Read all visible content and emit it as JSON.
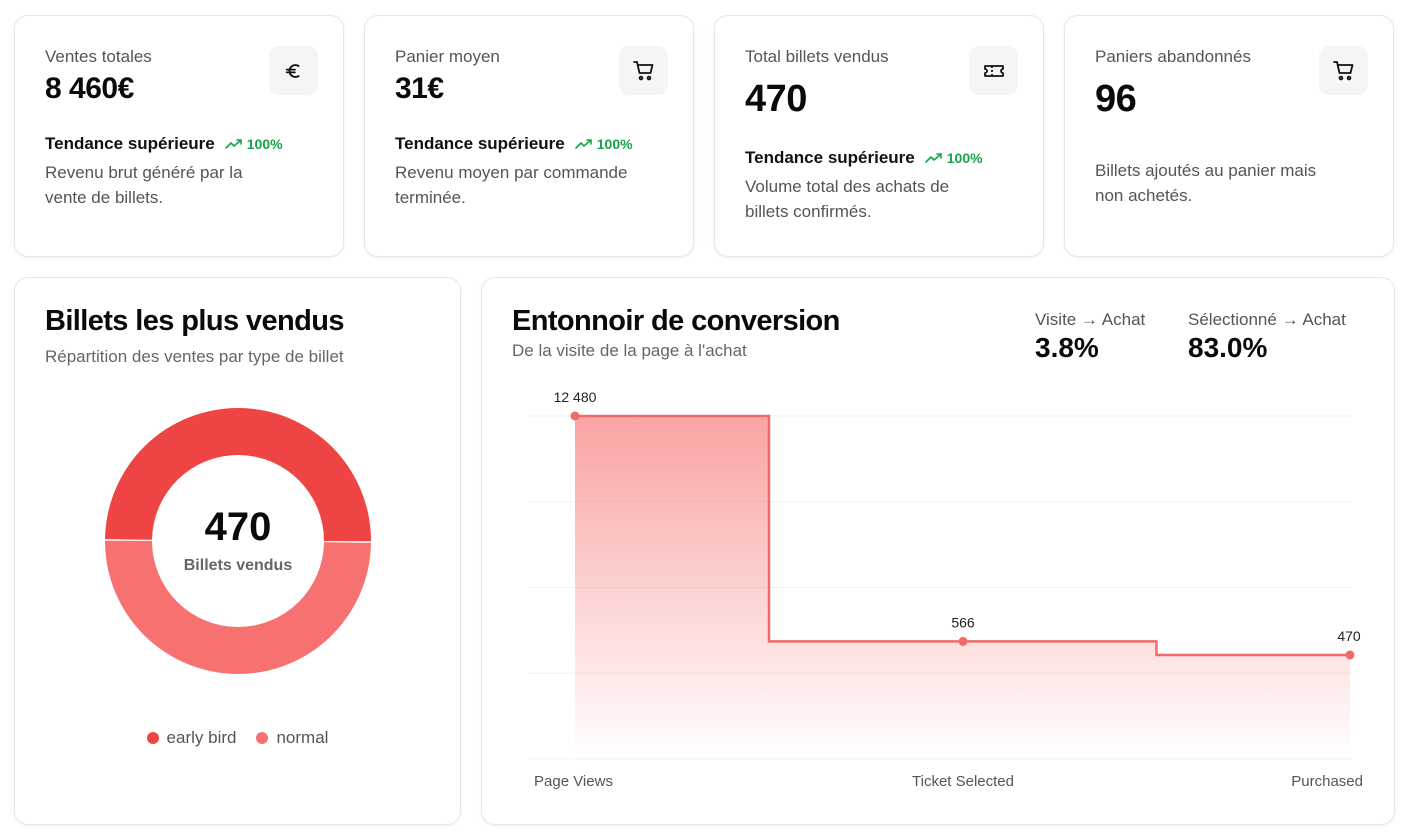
{
  "colors": {
    "accent": "#ef4444",
    "accent_light": "#f87171",
    "trend": "#16a34a"
  },
  "kpis": [
    {
      "label": "Ventes totales",
      "value": "8 460€",
      "icon": "euro-icon",
      "trend_label": "Tendance supérieure",
      "trend_pct": "100%",
      "desc_line1": "Revenu brut généré par la",
      "desc_line2": "vente de billets."
    },
    {
      "label": "Panier moyen",
      "value": "31€",
      "icon": "cart-icon",
      "trend_label": "Tendance supérieure",
      "trend_pct": "100%",
      "desc_line1": "Revenu moyen par commande",
      "desc_line2": "terminée."
    },
    {
      "label": "Total billets vendus",
      "value": "470",
      "icon": "ticket-icon",
      "trend_label": "Tendance supérieure",
      "trend_pct": "100%",
      "desc_line1": "Volume total des achats de",
      "desc_line2": "billets confirmés."
    },
    {
      "label": "Paniers abandonnés",
      "value": "96",
      "icon": "cart-icon",
      "desc_line1": "Billets ajoutés au panier mais",
      "desc_line2": "non achetés."
    }
  ],
  "donut": {
    "title": "Billets les plus vendus",
    "subtitle": "Répartition des ventes par type de billet",
    "center_value": "470",
    "center_label": "Billets vendus"
  },
  "funnel": {
    "title": "Entonnoir de conversion",
    "subtitle": "De la visite de la page à l'achat",
    "rates": [
      {
        "label": "Visite → Achat",
        "value": "3.8%"
      },
      {
        "label": "Sélectionné → Achat",
        "value": "83.0%"
      }
    ]
  },
  "chart_data": [
    {
      "type": "pie",
      "categories": [
        "early bird",
        "normal"
      ],
      "values": [
        235,
        235
      ],
      "colors": [
        "#ef4444",
        "#f87171"
      ],
      "legend": "bottom"
    },
    {
      "type": "area",
      "categories": [
        "Page Views",
        "Ticket Selected",
        "Purchased"
      ],
      "values": [
        12480,
        566,
        470
      ],
      "data_labels": [
        "12 480",
        "566",
        "470"
      ],
      "step": true,
      "grid": true
    }
  ]
}
